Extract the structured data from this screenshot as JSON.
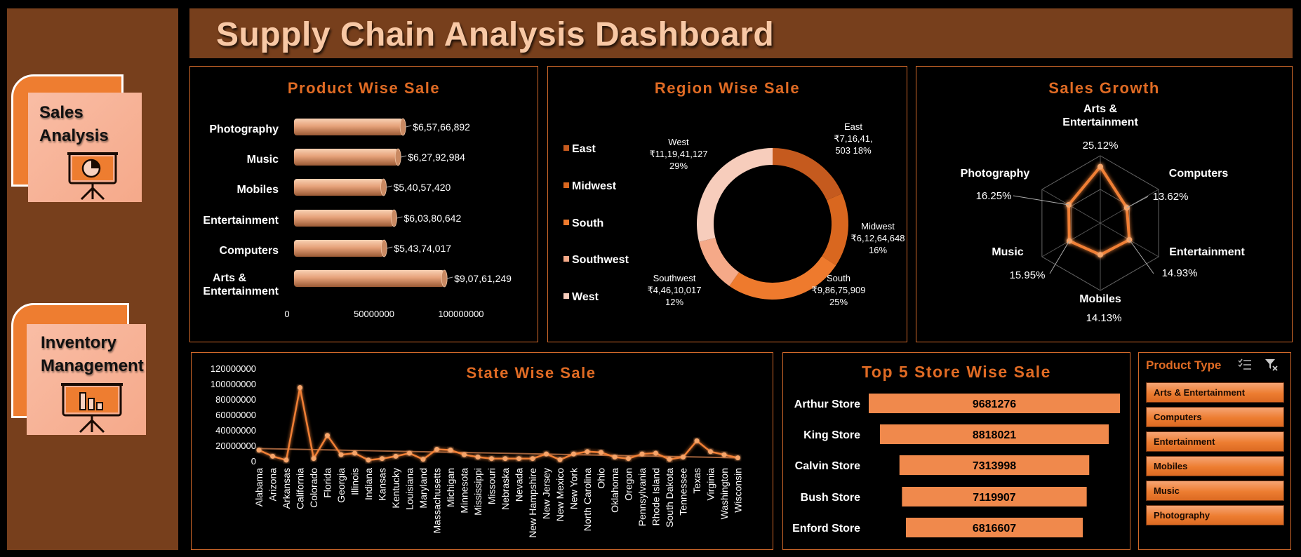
{
  "header": {
    "title": "Supply Chain Analysis Dashboard"
  },
  "nav": [
    {
      "label": "Sales\nAnalysis",
      "icon": "pie-chart-presentation-icon"
    },
    {
      "label": "Inventory\nManagement",
      "icon": "bar-chart-presentation-icon"
    }
  ],
  "colors": {
    "accent": "#E06B24",
    "brown": "#773F1C",
    "bar": "#F0894C",
    "peach": "#F6A98A"
  },
  "product_wise_sale": {
    "title": "Product Wise Sale",
    "chart_data": {
      "type": "bar",
      "orientation": "horizontal",
      "categories": [
        "Photography",
        "Music",
        "Mobiles",
        "Entertainment",
        "Computers",
        "Arts & Entertainment"
      ],
      "values": [
        65766892,
        62792984,
        54057420,
        60380642,
        54374017,
        90761249
      ],
      "data_labels": [
        "$6,57,66,892",
        "$6,27,92,984",
        "$5,40,57,420",
        "$6,03,80,642",
        "$5,43,74,017",
        "$9,07,61,249"
      ],
      "x_ticks": [
        "0",
        "50000000",
        "100000000"
      ],
      "xlim": [
        0,
        100000000
      ]
    }
  },
  "region_wise_sale": {
    "title": "Region Wise Sale",
    "chart_data": {
      "type": "pie",
      "style": "donut",
      "categories": [
        "East",
        "Midwest",
        "South",
        "Southwest",
        "West"
      ],
      "values": [
        71641503,
        61264648,
        98675909,
        44610017,
        111941127
      ],
      "percent": [
        18,
        16,
        25,
        12,
        29
      ],
      "colors": [
        "#C55A1E",
        "#D9671F",
        "#EE7A2D",
        "#F5A988",
        "#F7CDBC"
      ],
      "labels": [
        [
          "East",
          "₹7,16,41,",
          "503 18%"
        ],
        [
          "Midwest",
          "₹6,12,64,648",
          "16%"
        ],
        [
          "South",
          "₹9,86,75,909",
          "25%"
        ],
        [
          "Southwest",
          "₹4,46,10,017",
          "12%"
        ],
        [
          "West",
          "₹11,19,41,127",
          "29%"
        ]
      ],
      "legend_position": "left"
    }
  },
  "sales_growth": {
    "title": "Sales Growth",
    "chart_data": {
      "type": "radar",
      "categories": [
        "Arts & Entertainment",
        "Computers",
        "Entertainment",
        "Mobiles",
        "Music",
        "Photography"
      ],
      "category_lines": [
        [
          "Arts &",
          "Entertainment"
        ],
        [
          "Computers"
        ],
        [
          "Entertainment"
        ],
        [
          "Mobiles"
        ],
        [
          "Music"
        ],
        [
          "Photography"
        ]
      ],
      "values": [
        25.12,
        13.62,
        14.93,
        14.13,
        15.95,
        16.25
      ],
      "data_labels": [
        "25.12%",
        "13.62%",
        "14.93%",
        "14.13%",
        "15.95%",
        "16.25%"
      ],
      "rmax": 30
    }
  },
  "state_wise_sale": {
    "title": "State Wise Sale",
    "chart_data": {
      "type": "line",
      "categories": [
        "Alabama",
        "Arizona",
        "Arkansas",
        "California",
        "Colorado",
        "Florida",
        "Georgia",
        "Illinois",
        "Indiana",
        "Kansas",
        "Kentucky",
        "Louisiana",
        "Maryland",
        "Massachusetts",
        "Michigan",
        "Minnesota",
        "Mississippi",
        "Missouri",
        "Nebraska",
        "Nevada",
        "New Hampshire",
        "New Jersey",
        "New Mexico",
        "New York",
        "North Carolina",
        "Ohio",
        "Oklahoma",
        "Oregon",
        "Pennsylvania",
        "Rhode Island",
        "South Dakota",
        "Tennessee",
        "Texas",
        "Virginia",
        "Washington",
        "Wisconsin"
      ],
      "values": [
        14000000,
        6000000,
        1000000,
        95000000,
        3000000,
        33000000,
        8000000,
        10000000,
        1000000,
        3000000,
        6000000,
        10000000,
        2000000,
        15000000,
        14000000,
        8000000,
        5000000,
        3000000,
        3000000,
        3000000,
        3000000,
        9000000,
        1500000,
        9000000,
        12000000,
        11000000,
        5000000,
        3000000,
        9000000,
        10000000,
        2000000,
        5000000,
        26000000,
        12000000,
        8000000,
        4000000
      ],
      "trendline": [
        16000000,
        4000000
      ],
      "y_ticks": [
        "0",
        "20000000",
        "40000000",
        "60000000",
        "80000000",
        "100000000",
        "120000000"
      ],
      "ylim": [
        0,
        120000000
      ]
    }
  },
  "top_stores": {
    "title": "Top 5 Store Wise Sale",
    "chart_data": {
      "type": "bar",
      "orientation": "horizontal",
      "categories": [
        "Arthur Store",
        "King Store",
        "Calvin Store",
        "Bush Store",
        "Enford Store"
      ],
      "values": [
        9681276,
        8818021,
        7313998,
        7119907,
        6816607
      ],
      "data_labels": [
        "9681276",
        "8818021",
        "7313998",
        "7119907",
        "6816607"
      ]
    }
  },
  "slicer": {
    "title": "Product Type",
    "items": [
      "Arts & Entertainment",
      "Computers",
      "Entertainment",
      "Mobiles",
      "Music",
      "Photography"
    ]
  }
}
